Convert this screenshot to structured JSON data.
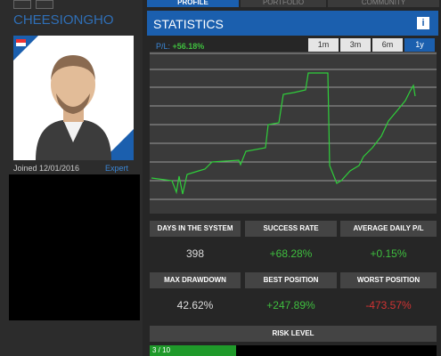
{
  "profile": {
    "name": "CHEESIONGHO",
    "joined": "Joined 12/01/2016",
    "level": "Expert"
  },
  "tabs": [
    "PROFILE",
    "PORTFOLIO",
    "COMMUNITY"
  ],
  "statistics": {
    "title": "STATISTICS",
    "info": "i",
    "pl_label": "P/L:",
    "pl_value": "+56.18%",
    "ranges": [
      "1m",
      "3m",
      "6m",
      "1y"
    ],
    "active_range": 3,
    "cells": [
      {
        "label": "DAYS IN THE SYSTEM",
        "value": "398",
        "tone": "neutral"
      },
      {
        "label": "SUCCESS RATE",
        "value": "+68.28%",
        "tone": "positive"
      },
      {
        "label": "AVERAGE DAILY P/L",
        "value": "+0.15%",
        "tone": "positive"
      },
      {
        "label": "MAX DRAWDOWN",
        "value": "42.62%",
        "tone": "neutral"
      },
      {
        "label": "BEST POSITION",
        "value": "+247.89%",
        "tone": "positive"
      },
      {
        "label": "WORST POSITION",
        "value": "-473.57%",
        "tone": "negative"
      }
    ],
    "risk": {
      "title": "RISK LEVEL",
      "score": 3,
      "max": 10,
      "label": "3 / 10"
    }
  }
}
